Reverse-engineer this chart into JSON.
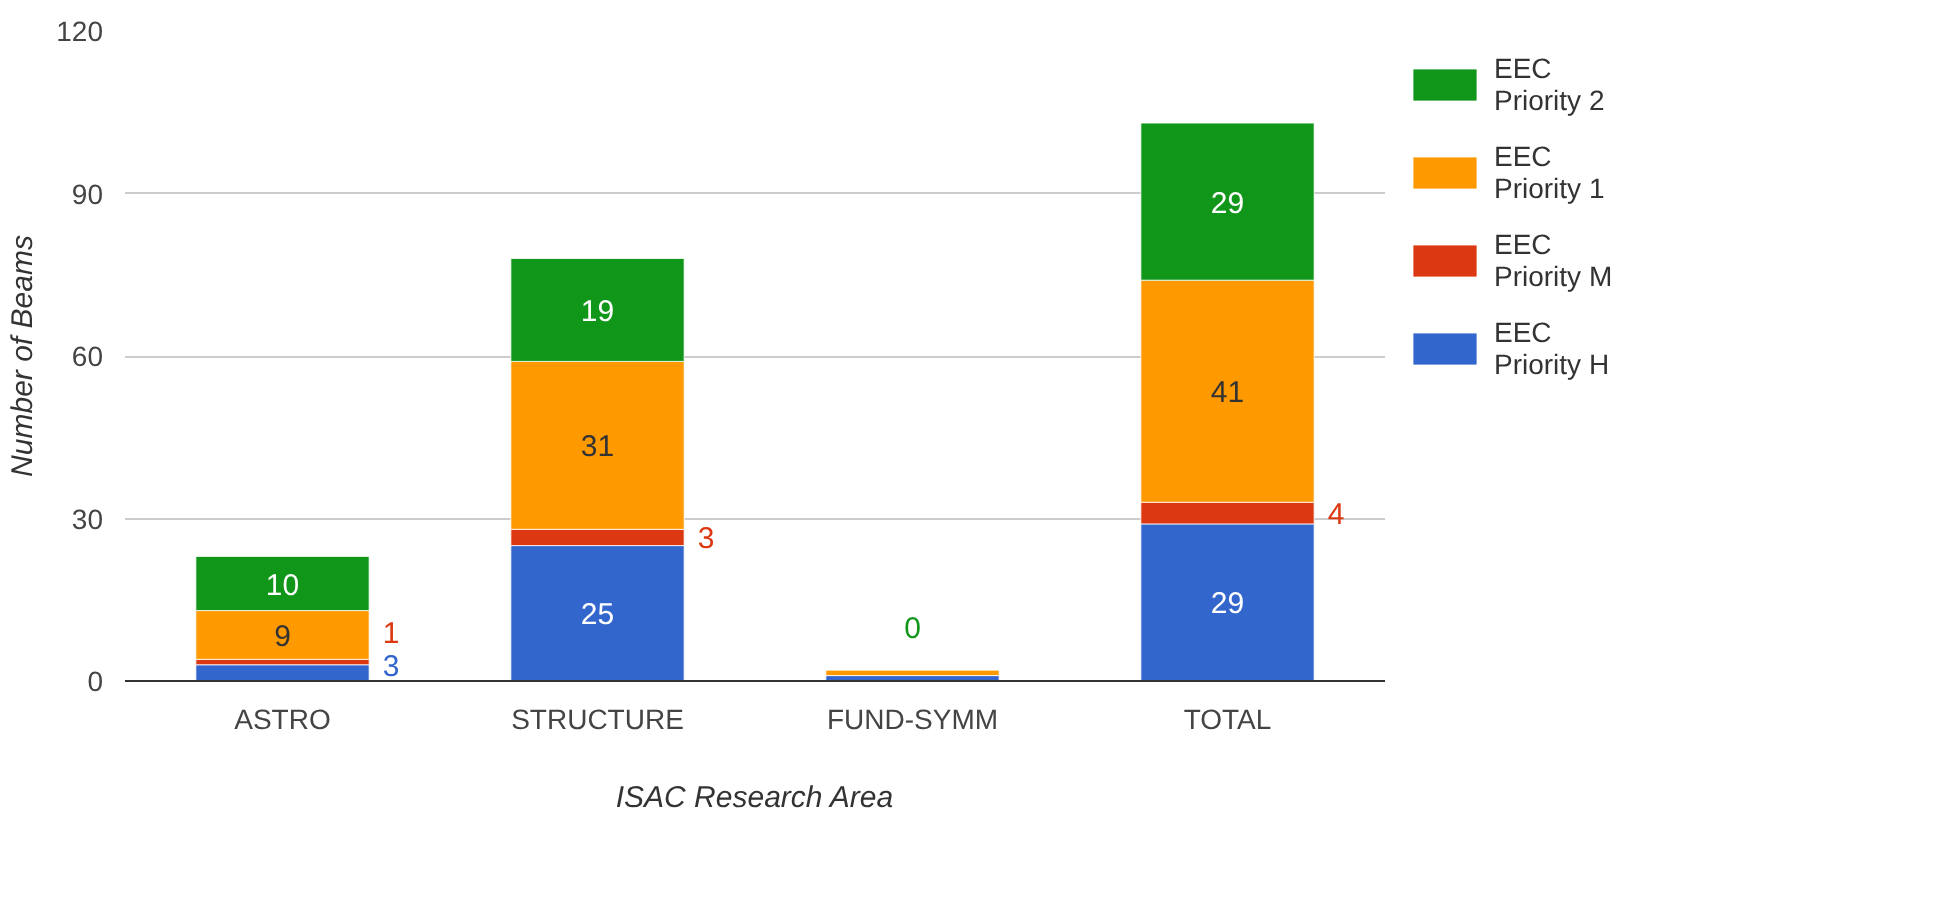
{
  "chart_data": {
    "type": "bar",
    "stacked": true,
    "xlabel": "ISAC Research Area",
    "ylabel": "Number of Beams",
    "categories": [
      "ASTRO",
      "STRUCTURE",
      "FUND-SYMM",
      "TOTAL"
    ],
    "series": [
      {
        "name": "EEC Priority H",
        "color": "#3366cc",
        "values": [
          3,
          25,
          1,
          29
        ],
        "value_labels": [
          "3",
          "25",
          null,
          "29"
        ]
      },
      {
        "name": "EEC Priority M",
        "color": "#dc3912",
        "values": [
          1,
          3,
          0,
          4
        ],
        "value_labels": [
          "1",
          "3",
          null,
          "4"
        ]
      },
      {
        "name": "EEC Priority 1",
        "color": "#ff9900",
        "values": [
          9,
          31,
          1,
          41
        ],
        "value_labels": [
          "9",
          "31",
          null,
          "41"
        ]
      },
      {
        "name": "EEC Priority 2",
        "color": "#109618",
        "values": [
          10,
          19,
          0,
          29
        ],
        "value_labels": [
          "10",
          "19",
          "0",
          "29"
        ]
      }
    ],
    "ylim": [
      0,
      120
    ],
    "yticks": [
      0,
      30,
      60,
      90,
      120
    ],
    "grid": "y",
    "legend": "right"
  }
}
